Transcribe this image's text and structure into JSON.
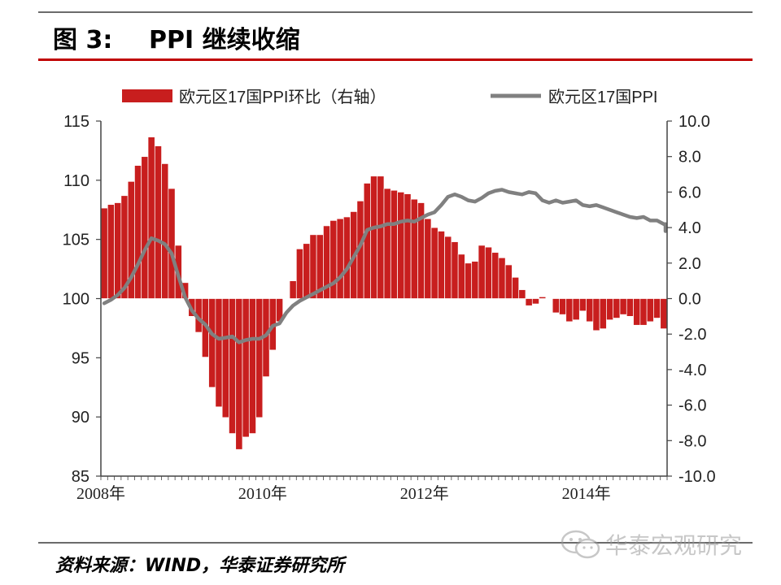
{
  "figure": {
    "label": "图 3:",
    "title": "PPI 继续收缩"
  },
  "source": "资料来源：WIND，华泰证券研究所",
  "watermark": "华泰宏观研究",
  "colors": {
    "bar": "#c81e1e",
    "bar_edge": "#ffffff",
    "line": "#808080",
    "header_rule": "#c00000"
  },
  "chart_data": {
    "type": "bar+line",
    "legend_position": "top",
    "y_left": {
      "min": 85,
      "max": 115,
      "ticks": [
        "115",
        "110",
        "105",
        "100",
        "95",
        "90",
        "85"
      ]
    },
    "y_right": {
      "min": -10,
      "max": 10,
      "ticks": [
        "10.0",
        "8.0",
        "6.0",
        "4.0",
        "2.0",
        "0.0",
        "-2.0",
        "-4.0",
        "-6.0",
        "-8.0",
        "-10.0"
      ]
    },
    "x_labels": [
      "2008年",
      "2010年",
      "2012年",
      "2014年"
    ],
    "x_start": "2008-01",
    "series": [
      {
        "name": "欧元区17国PPI环比（右轴）",
        "type": "bar",
        "axis": "right",
        "values": [
          5.1,
          5.3,
          5.4,
          5.8,
          6.6,
          7.5,
          8.0,
          9.1,
          8.6,
          7.6,
          6.2,
          3.0,
          0.9,
          -1.0,
          -1.9,
          -3.3,
          -5.0,
          -6.1,
          -6.7,
          -7.6,
          -8.5,
          -7.8,
          -7.6,
          -6.7,
          -4.4,
          -2.9,
          -1.3,
          0.0,
          1.0,
          2.8,
          3.1,
          3.6,
          3.6,
          4.1,
          4.4,
          4.5,
          4.6,
          4.9,
          5.5,
          6.5,
          6.9,
          6.9,
          6.2,
          6.1,
          6.0,
          5.9,
          5.6,
          5.4,
          4.5,
          4.0,
          3.8,
          3.5,
          3.2,
          2.5,
          2.0,
          2.1,
          3.0,
          2.9,
          2.6,
          2.3,
          1.9,
          1.2,
          0.5,
          -0.4,
          -0.3,
          0.1,
          0.0,
          -0.8,
          -0.9,
          -1.3,
          -1.2,
          -0.7,
          -1.3,
          -1.8,
          -1.7,
          -1.2,
          -1.1,
          -0.9,
          -1.0,
          -1.5,
          -1.5,
          -1.3,
          -1.1,
          -1.7
        ]
      },
      {
        "name": "欧元区17国PPI",
        "type": "line",
        "axis": "left",
        "values": [
          99.6,
          99.9,
          100.3,
          100.9,
          101.8,
          102.9,
          104.1,
          105.1,
          104.9,
          104.6,
          103.8,
          101.9,
          100.1,
          99.0,
          98.3,
          97.8,
          97.0,
          96.6,
          96.7,
          96.8,
          96.3,
          96.5,
          96.6,
          96.6,
          96.9,
          97.7,
          97.9,
          98.8,
          99.4,
          99.8,
          100.1,
          100.4,
          100.7,
          101.0,
          101.3,
          101.8,
          102.5,
          103.5,
          104.5,
          105.8,
          106.0,
          106.1,
          106.3,
          106.3,
          106.5,
          106.6,
          106.5,
          106.8,
          107.1,
          107.3,
          107.9,
          108.6,
          108.8,
          108.6,
          108.3,
          108.2,
          108.5,
          108.9,
          109.1,
          109.2,
          109.0,
          108.9,
          108.8,
          109.0,
          108.9,
          108.3,
          108.1,
          108.3,
          108.1,
          108.2,
          108.3,
          107.9,
          107.8,
          107.9,
          107.7,
          107.5,
          107.3,
          107.1,
          106.9,
          106.8,
          106.9,
          106.6,
          106.6,
          106.3,
          106.2,
          106.3,
          106.0,
          105.7
        ]
      }
    ]
  }
}
